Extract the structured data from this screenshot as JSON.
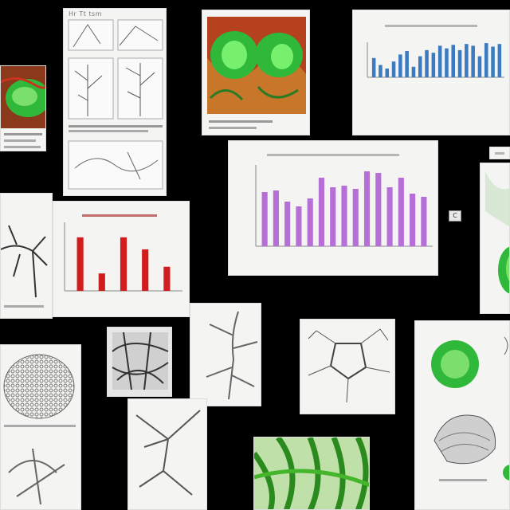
{
  "canvas": {
    "background": "#000000"
  },
  "colors": {
    "green_accent": "#2fb83a",
    "red_accent": "#c8341f",
    "bar_blue": "#3c7bc2",
    "bar_purple": "#b56fd6",
    "bar_red": "#d11d1d"
  },
  "sheet_titles": {
    "doc_sheet": "Hr Tt tsm"
  },
  "chip": {
    "label": "C"
  },
  "chart_data": [
    {
      "type": "bar",
      "title": "",
      "series": [
        {
          "values": [
            2.2,
            1.4,
            1.0,
            1.8,
            2.6,
            3.0,
            1.2,
            2.4,
            3.1,
            2.8,
            3.6,
            3.3,
            3.7,
            3.1,
            3.8,
            3.6,
            2.4,
            3.9,
            3.5,
            3.8
          ]
        }
      ],
      "ylim": [
        0,
        4
      ]
    },
    {
      "type": "bar",
      "title": "",
      "series": [
        {
          "values": [
            3.4,
            3.5,
            2.8,
            2.5,
            3.0,
            4.3,
            3.7,
            3.8,
            3.6,
            4.7,
            4.6,
            3.7,
            4.3,
            3.3,
            3.1
          ]
        }
      ],
      "ylim": [
        0,
        5
      ]
    },
    {
      "type": "bar",
      "title": "",
      "series": [
        {
          "values": [
            4.0,
            1.3,
            4.0,
            3.1,
            1.8
          ]
        }
      ],
      "ylim": [
        0,
        5
      ]
    }
  ]
}
